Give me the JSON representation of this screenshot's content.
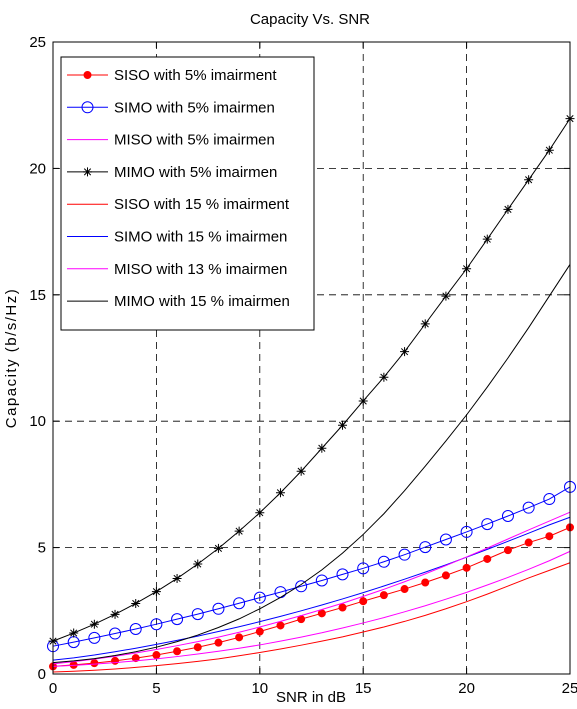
{
  "chart_data": {
    "type": "line",
    "title": "Capacity Vs. SNR",
    "xlabel": "SNR in dB",
    "ylabel": "Capacity  (b/s/Hz)",
    "xlim": [
      0,
      25
    ],
    "ylim": [
      0,
      25
    ],
    "xticks": [
      "0",
      "5",
      "10",
      "15",
      "20",
      "25"
    ],
    "yticks": [
      "0",
      "5",
      "10",
      "15",
      "20",
      "25"
    ],
    "grid": true,
    "legend_position": "top-left",
    "x": [
      0,
      1,
      2,
      3,
      4,
      5,
      6,
      7,
      8,
      9,
      10,
      11,
      12,
      13,
      14,
      15,
      16,
      17,
      18,
      19,
      20,
      21,
      22,
      23,
      24,
      25
    ],
    "series": [
      {
        "name": "SISO with 5% imairment",
        "color": "#ff0000",
        "marker": "dot",
        "values": [
          0.3,
          0.36,
          0.43,
          0.52,
          0.63,
          0.75,
          0.9,
          1.06,
          1.24,
          1.45,
          1.68,
          1.92,
          2.17,
          2.4,
          2.63,
          2.88,
          3.12,
          3.36,
          3.62,
          3.9,
          4.2,
          4.55,
          4.9,
          5.2,
          5.45,
          5.8
        ]
      },
      {
        "name": "SIMO with 5% imairmen",
        "color": "#0000ff",
        "marker": "circle",
        "values": [
          1.1,
          1.26,
          1.43,
          1.6,
          1.78,
          1.97,
          2.17,
          2.37,
          2.58,
          2.8,
          3.02,
          3.24,
          3.47,
          3.7,
          3.94,
          4.18,
          4.44,
          4.72,
          5.02,
          5.32,
          5.62,
          5.93,
          6.25,
          6.58,
          6.92,
          7.4
        ]
      },
      {
        "name": "MISO with 5% imairmen",
        "color": "#ff00ff",
        "marker": "none",
        "values": [
          0.3,
          0.34,
          0.39,
          0.45,
          0.52,
          0.6,
          0.69,
          0.79,
          0.9,
          1.02,
          1.15,
          1.3,
          1.46,
          1.63,
          1.82,
          2.02,
          2.23,
          2.46,
          2.7,
          2.96,
          3.23,
          3.52,
          3.82,
          4.14,
          4.48,
          4.85
        ]
      },
      {
        "name": "MIMO with 5% imairmen",
        "color": "#000000",
        "marker": "star",
        "values": [
          1.3,
          1.62,
          1.97,
          2.36,
          2.79,
          3.26,
          3.78,
          4.35,
          4.97,
          5.65,
          6.38,
          7.17,
          8.02,
          8.93,
          9.84,
          10.8,
          11.74,
          12.75,
          13.85,
          14.95,
          16.03,
          17.2,
          18.38,
          19.55,
          20.72,
          21.97
        ]
      },
      {
        "name": "SISO with 15 % imairment",
        "color": "#ff0000",
        "marker": "none",
        "values": [
          0.08,
          0.11,
          0.15,
          0.2,
          0.26,
          0.33,
          0.41,
          0.5,
          0.6,
          0.72,
          0.85,
          0.99,
          1.14,
          1.3,
          1.47,
          1.66,
          1.86,
          2.08,
          2.32,
          2.58,
          2.86,
          3.16,
          3.48,
          3.8,
          4.1,
          4.4
        ]
      },
      {
        "name": "SIMO with 15 % imairmen",
        "color": "#0000ff",
        "marker": "none",
        "values": [
          0.55,
          0.64,
          0.75,
          0.88,
          1.02,
          1.17,
          1.33,
          1.5,
          1.68,
          1.87,
          2.07,
          2.28,
          2.5,
          2.73,
          2.97,
          3.22,
          3.48,
          3.75,
          4.03,
          4.32,
          4.62,
          4.93,
          5.25,
          5.57,
          5.9,
          6.2
        ]
      },
      {
        "name": "MISO with 13 % imairmen",
        "color": "#ff00ff",
        "marker": "none",
        "values": [
          0.4,
          0.49,
          0.59,
          0.7,
          0.83,
          0.97,
          1.12,
          1.28,
          1.46,
          1.65,
          1.86,
          2.08,
          2.31,
          2.55,
          2.8,
          3.07,
          3.35,
          3.65,
          3.96,
          4.29,
          4.63,
          4.98,
          5.34,
          5.7,
          6.05,
          6.4
        ]
      },
      {
        "name": "MIMO with 15 % imairmen",
        "color": "#000000",
        "marker": "none",
        "values": [
          0.45,
          0.52,
          0.61,
          0.73,
          0.88,
          1.06,
          1.28,
          1.54,
          1.84,
          2.18,
          2.58,
          3.03,
          3.54,
          4.12,
          4.78,
          5.52,
          6.34,
          7.25,
          8.22,
          9.22,
          10.25,
          11.35,
          12.5,
          13.7,
          14.95,
          16.2
        ]
      }
    ]
  }
}
